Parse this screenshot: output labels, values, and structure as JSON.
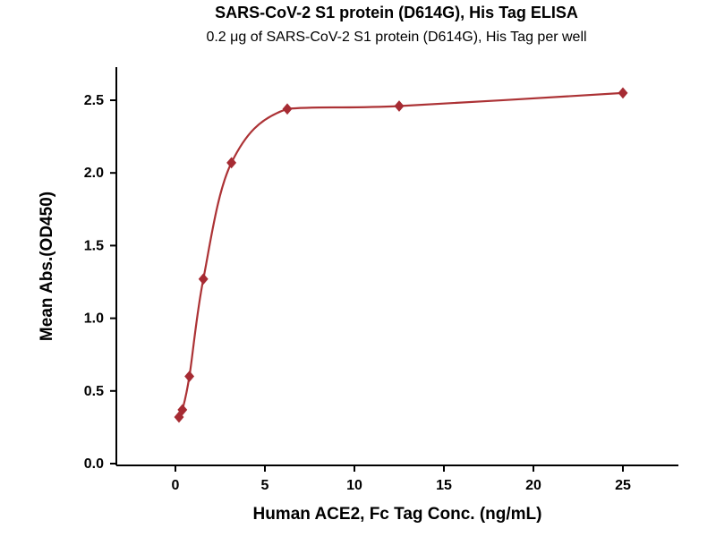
{
  "header": {
    "title": "SARS-CoV-2 S1 protein (D614G), His Tag ELISA",
    "subtitle": "0.2 μg of SARS-CoV-2 S1 protein (D614G), His Tag per well"
  },
  "chart_data": {
    "type": "scatter",
    "title": "SARS-CoV-2 S1 protein (D614G), His Tag ELISA",
    "subtitle": "0.2 μg of SARS-CoV-2 S1 protein (D614G), His Tag per well",
    "xlabel": "Human ACE2, Fc Tag Conc. (ng/mL)",
    "ylabel": "Mean Abs.(OD450)",
    "xlim": [
      0,
      25
    ],
    "ylim": [
      0.0,
      2.5
    ],
    "grid": false,
    "legend": "none",
    "marker": "diamond",
    "line_color": "#ac3235",
    "marker_color": "#a62b33",
    "axis_color": "#000000",
    "xticks": [
      {
        "v": 0,
        "label": "0"
      },
      {
        "v": 5,
        "label": "5"
      },
      {
        "v": 10,
        "label": "10"
      },
      {
        "v": 15,
        "label": "15"
      },
      {
        "v": 20,
        "label": "20"
      },
      {
        "v": 25,
        "label": "25"
      }
    ],
    "yticks": [
      {
        "v": 0.0,
        "label": "0.0"
      },
      {
        "v": 0.5,
        "label": "0.5"
      },
      {
        "v": 1.0,
        "label": "1.0"
      },
      {
        "v": 1.5,
        "label": "1.5"
      },
      {
        "v": 2.0,
        "label": "2.0"
      },
      {
        "v": 2.5,
        "label": "2.5"
      }
    ],
    "points": [
      {
        "x": 0.2,
        "y": 0.32
      },
      {
        "x": 0.39,
        "y": 0.37
      },
      {
        "x": 0.78,
        "y": 0.6
      },
      {
        "x": 1.56,
        "y": 1.27
      },
      {
        "x": 3.13,
        "y": 2.07
      },
      {
        "x": 6.25,
        "y": 2.44
      },
      {
        "x": 12.5,
        "y": 2.46
      },
      {
        "x": 25,
        "y": 2.55
      }
    ]
  }
}
